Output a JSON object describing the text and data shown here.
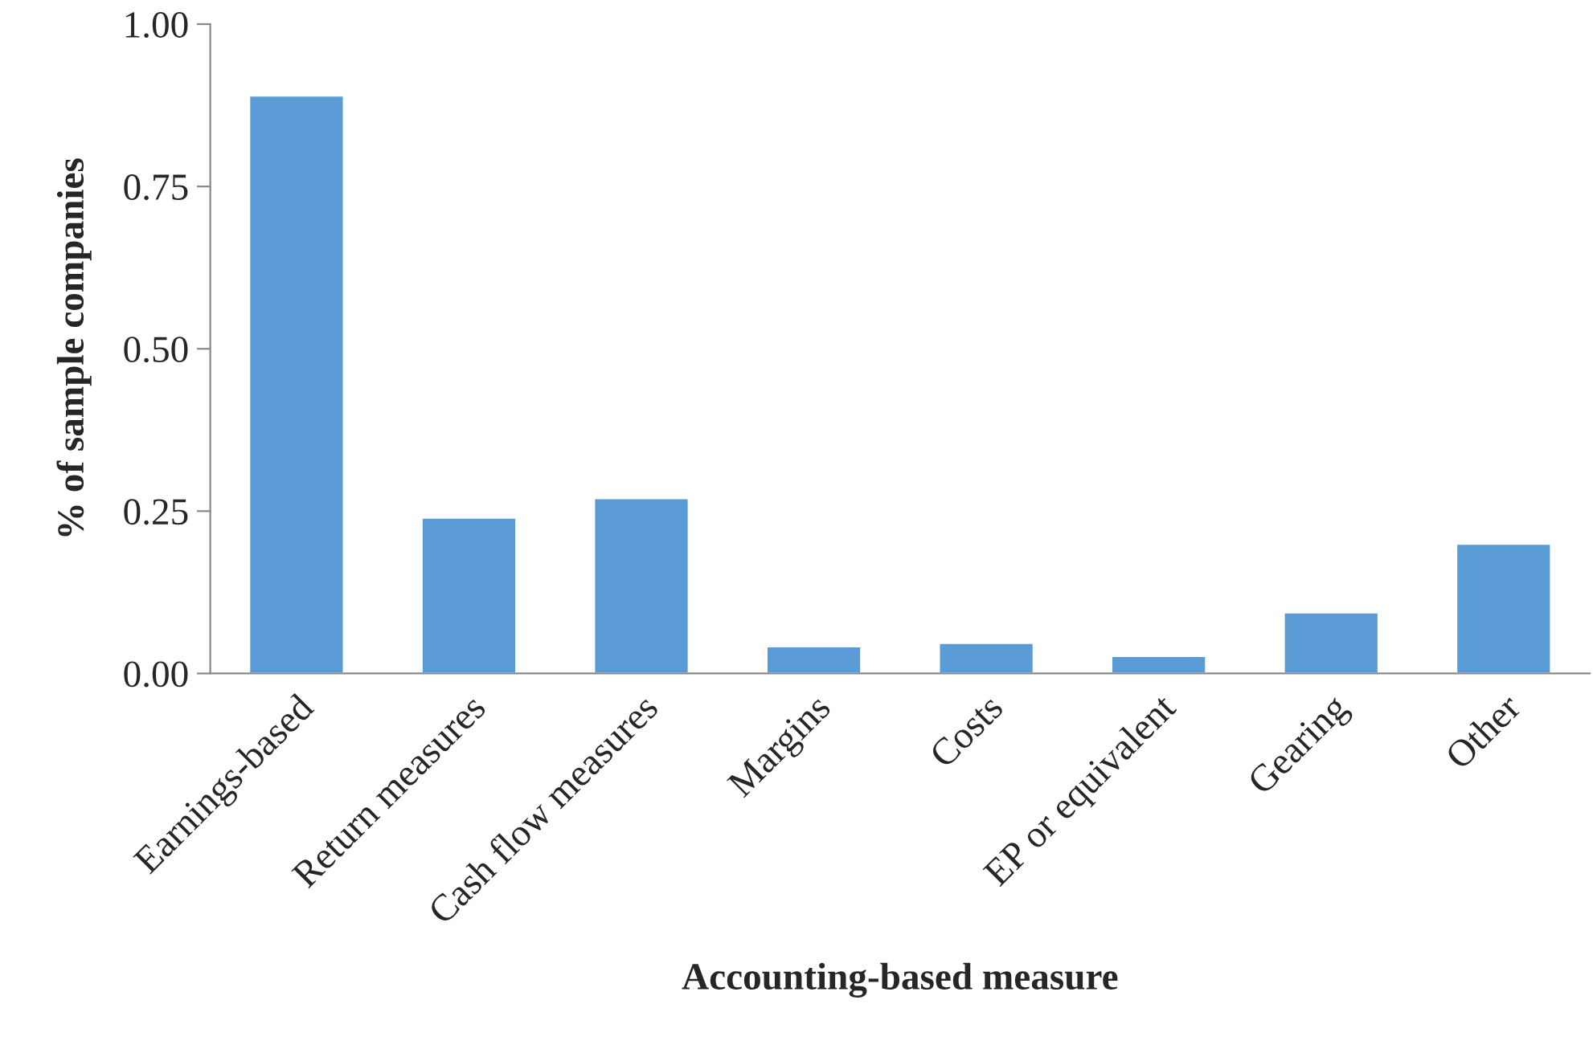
{
  "chart_data": {
    "type": "bar",
    "xlabel": "Accounting-based measure",
    "ylabel": "% of sample companies",
    "categories": [
      "Earnings-based",
      "Return measures",
      "Cash flow measures",
      "Margins",
      "Costs",
      "EP or equivalent",
      "Gearing",
      "Other"
    ],
    "values": [
      0.89,
      0.24,
      0.27,
      0.042,
      0.047,
      0.027,
      0.094,
      0.2
    ],
    "color": "#5b9bd5",
    "ylim": [
      0,
      1
    ],
    "yticks": [
      {
        "value": 0,
        "label": "0.00"
      },
      {
        "value": 0.25,
        "label": "0.25"
      },
      {
        "value": 0.5,
        "label": "0.50"
      },
      {
        "value": 0.75,
        "label": "0.75"
      },
      {
        "value": 1,
        "label": "1.00"
      }
    ],
    "grid": false,
    "legend": false
  }
}
